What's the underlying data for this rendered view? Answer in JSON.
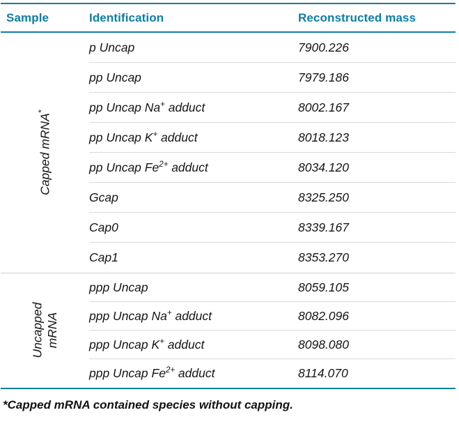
{
  "theme": {
    "accent_color": "#0E7EA4",
    "row_separator_color": "#D9D9D9",
    "group_separator_color": "#CFCFCF"
  },
  "chart_data": {
    "type": "table",
    "title": "",
    "columns": [
      "Sample",
      "Identification",
      "Reconstructed mass"
    ],
    "rows": [
      [
        "Capped mRNA*",
        "p Uncap",
        7900.226
      ],
      [
        "Capped mRNA*",
        "pp Uncap",
        7979.186
      ],
      [
        "Capped mRNA*",
        "pp Uncap Na+ adduct",
        8002.167
      ],
      [
        "Capped mRNA*",
        "pp Uncap K+ adduct",
        8018.123
      ],
      [
        "Capped mRNA*",
        "pp Uncap Fe2+ adduct",
        8034.12
      ],
      [
        "Capped mRNA*",
        "Gcap",
        8325.25
      ],
      [
        "Capped mRNA*",
        "Cap0",
        8339.167
      ],
      [
        "Capped mRNA*",
        "Cap1",
        8353.27
      ],
      [
        "Uncapped mRNA",
        "ppp Uncap",
        8059.105
      ],
      [
        "Uncapped mRNA",
        "ppp Uncap Na+ adduct",
        8082.096
      ],
      [
        "Uncapped mRNA",
        "ppp Uncap K+ adduct",
        8098.08
      ],
      [
        "Uncapped mRNA",
        "ppp Uncap Fe2+ adduct",
        8114.07
      ]
    ]
  },
  "table": {
    "headers": {
      "sample": "Sample",
      "identification": "Identification",
      "mass": "Reconstructed mass"
    },
    "groups": [
      {
        "label_main": "Capped mRNA",
        "label_sup": "*",
        "rows": [
          {
            "pre": "p Uncap",
            "sup": "",
            "post": "",
            "mass": "7900.226"
          },
          {
            "pre": "pp Uncap",
            "sup": "",
            "post": "",
            "mass": "7979.186"
          },
          {
            "pre": "pp Uncap Na",
            "sup": "+",
            "post": " adduct",
            "mass": "8002.167"
          },
          {
            "pre": "pp Uncap K",
            "sup": "+",
            "post": " adduct",
            "mass": "8018.123"
          },
          {
            "pre": "pp Uncap Fe",
            "sup": "2+",
            "post": " adduct",
            "mass": "8034.120"
          },
          {
            "pre": "Gcap",
            "sup": "",
            "post": "",
            "mass": "8325.250"
          },
          {
            "pre": "Cap0",
            "sup": "",
            "post": "",
            "mass": "8339.167"
          },
          {
            "pre": "Cap1",
            "sup": "",
            "post": "",
            "mass": "8353.270"
          }
        ]
      },
      {
        "label_main": "Uncapped\nmRNA",
        "label_sup": "",
        "rows": [
          {
            "pre": "ppp Uncap",
            "sup": "",
            "post": "",
            "mass": "8059.105"
          },
          {
            "pre": "ppp Uncap Na",
            "sup": "+",
            "post": " adduct",
            "mass": "8082.096"
          },
          {
            "pre": "ppp Uncap K",
            "sup": "+",
            "post": " adduct",
            "mass": "8098.080"
          },
          {
            "pre": "ppp Uncap Fe",
            "sup": "2+",
            "post": " adduct",
            "mass": "8114.070"
          }
        ]
      }
    ],
    "footnote": "*Capped mRNA contained species without capping."
  }
}
